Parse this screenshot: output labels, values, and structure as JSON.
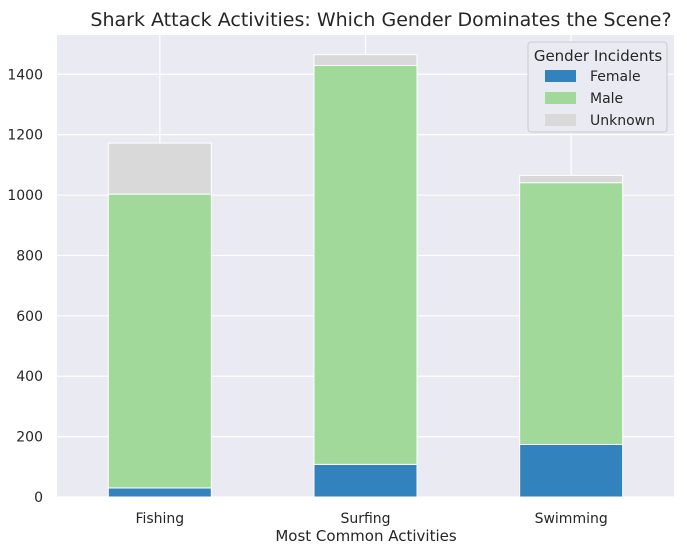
{
  "chart_data": {
    "type": "bar",
    "stacked": true,
    "title": "Shark Attack Activities: Which Gender Dominates the Scene?",
    "xlabel": "Most Common Activities",
    "ylabel": "",
    "categories": [
      "Fishing",
      "Surfing",
      "Swimming"
    ],
    "series": [
      {
        "name": "Female",
        "values": [
          30,
          108,
          174
        ],
        "color": "#3182bd"
      },
      {
        "name": "Male",
        "values": [
          973,
          1321,
          867
        ],
        "color": "#a1d99b"
      },
      {
        "name": "Unknown",
        "values": [
          169,
          36,
          24
        ],
        "color": "#d9d9d9"
      }
    ],
    "ylim": [
      0,
      1530
    ],
    "yticks": [
      0,
      200,
      400,
      600,
      800,
      1000,
      1200,
      1400
    ],
    "grid": true,
    "legend": {
      "title": "Gender Incidents",
      "placement": "top-right"
    },
    "background_color": "#eaeaf2",
    "grid_color": "#ffffff"
  }
}
